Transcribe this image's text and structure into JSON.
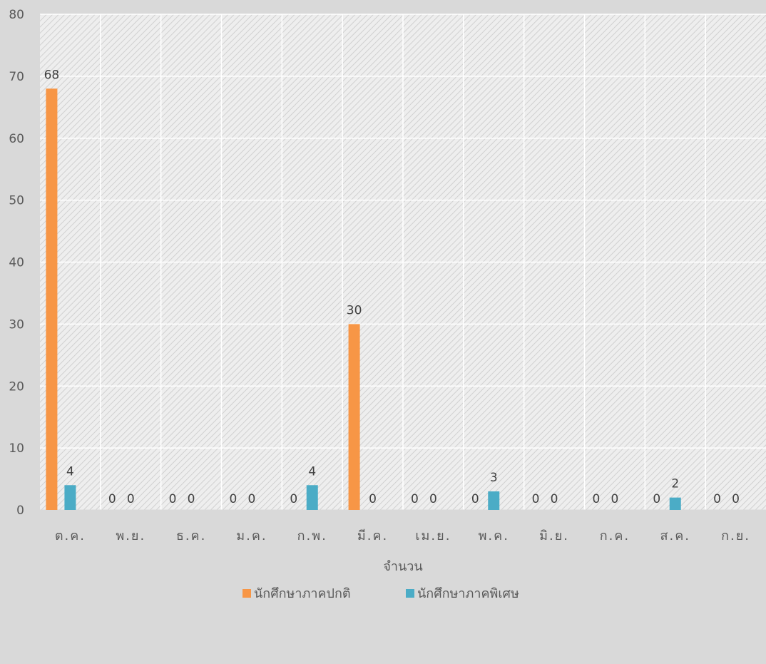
{
  "chart_data": {
    "type": "bar",
    "categories": [
      "ต.ค.",
      "พ.ย.",
      "ธ.ค.",
      "ม.ค.",
      "ก.พ.",
      "มี.ค.",
      "เม.ย.",
      "พ.ค.",
      "มิ.ย.",
      "ก.ค.",
      "ส.ค.",
      "ก.ย."
    ],
    "series": [
      {
        "name": "นักศึกษาภาคปกติ",
        "color": "#f79646",
        "values": [
          68,
          0,
          0,
          0,
          0,
          30,
          0,
          0,
          0,
          0,
          0,
          0
        ]
      },
      {
        "name": "นักศึกษาภาคพิเศษ",
        "color": "#4bacc6",
        "values": [
          4,
          0,
          0,
          0,
          4,
          0,
          0,
          3,
          0,
          0,
          2,
          0
        ]
      }
    ],
    "yticks": [
      "0",
      "10",
      "20",
      "30",
      "40",
      "50",
      "60",
      "70",
      "80"
    ],
    "ylim": [
      0,
      80
    ],
    "xlabel": "จำนวน",
    "ylabel": "",
    "title": "",
    "grid": true,
    "data_labels": true,
    "legend_position": "bottom",
    "colors": {
      "background": "#d9d9d9",
      "plot_area": "#eeeeee",
      "hatch": "#d0d0d0",
      "gridline": "#ffffff"
    }
  }
}
